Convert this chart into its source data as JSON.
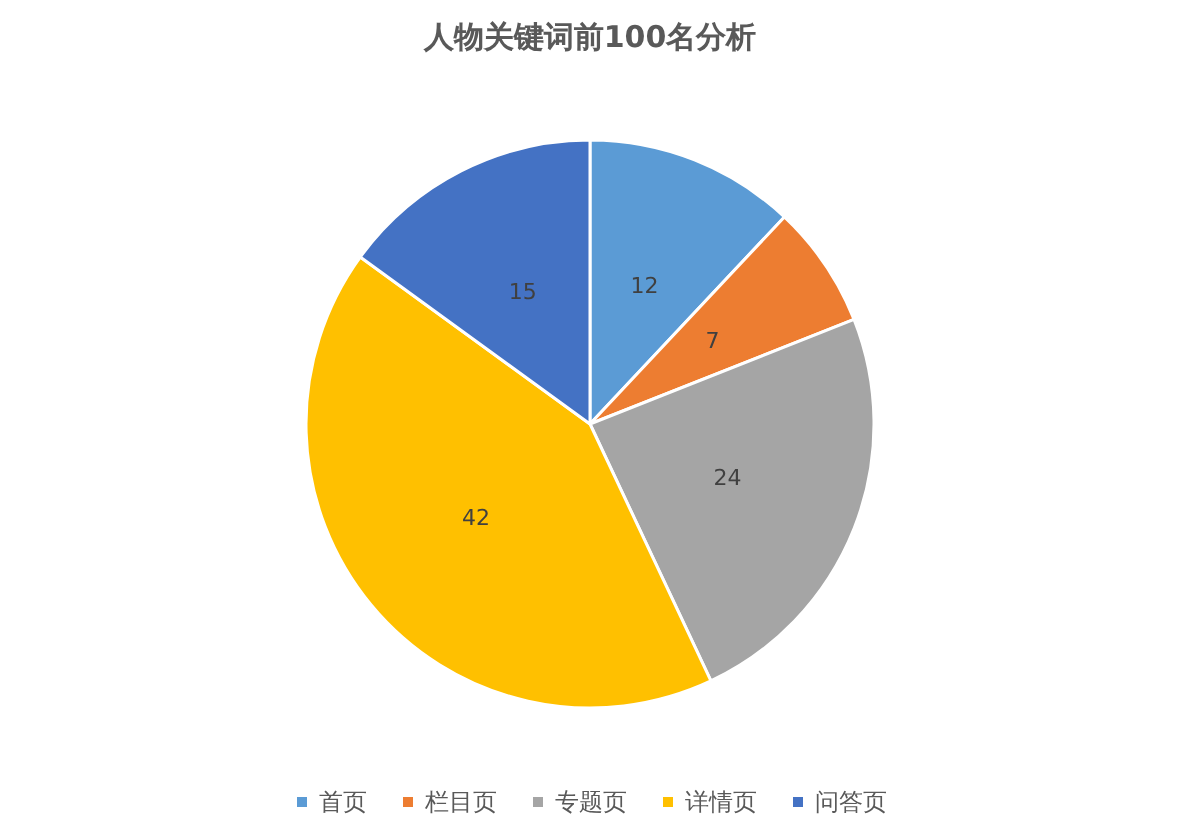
{
  "chart_data": {
    "type": "pie",
    "title": "人物关键词前100名分析",
    "categories": [
      "首页",
      "栏目页",
      "专题页",
      "详情页",
      "问答页"
    ],
    "values": [
      12,
      7,
      24,
      42,
      15
    ],
    "colors": [
      "#5b9bd5",
      "#ed7d31",
      "#a5a5a5",
      "#ffc000",
      "#4472c4"
    ],
    "data_labels": true,
    "legend": "bottom"
  }
}
